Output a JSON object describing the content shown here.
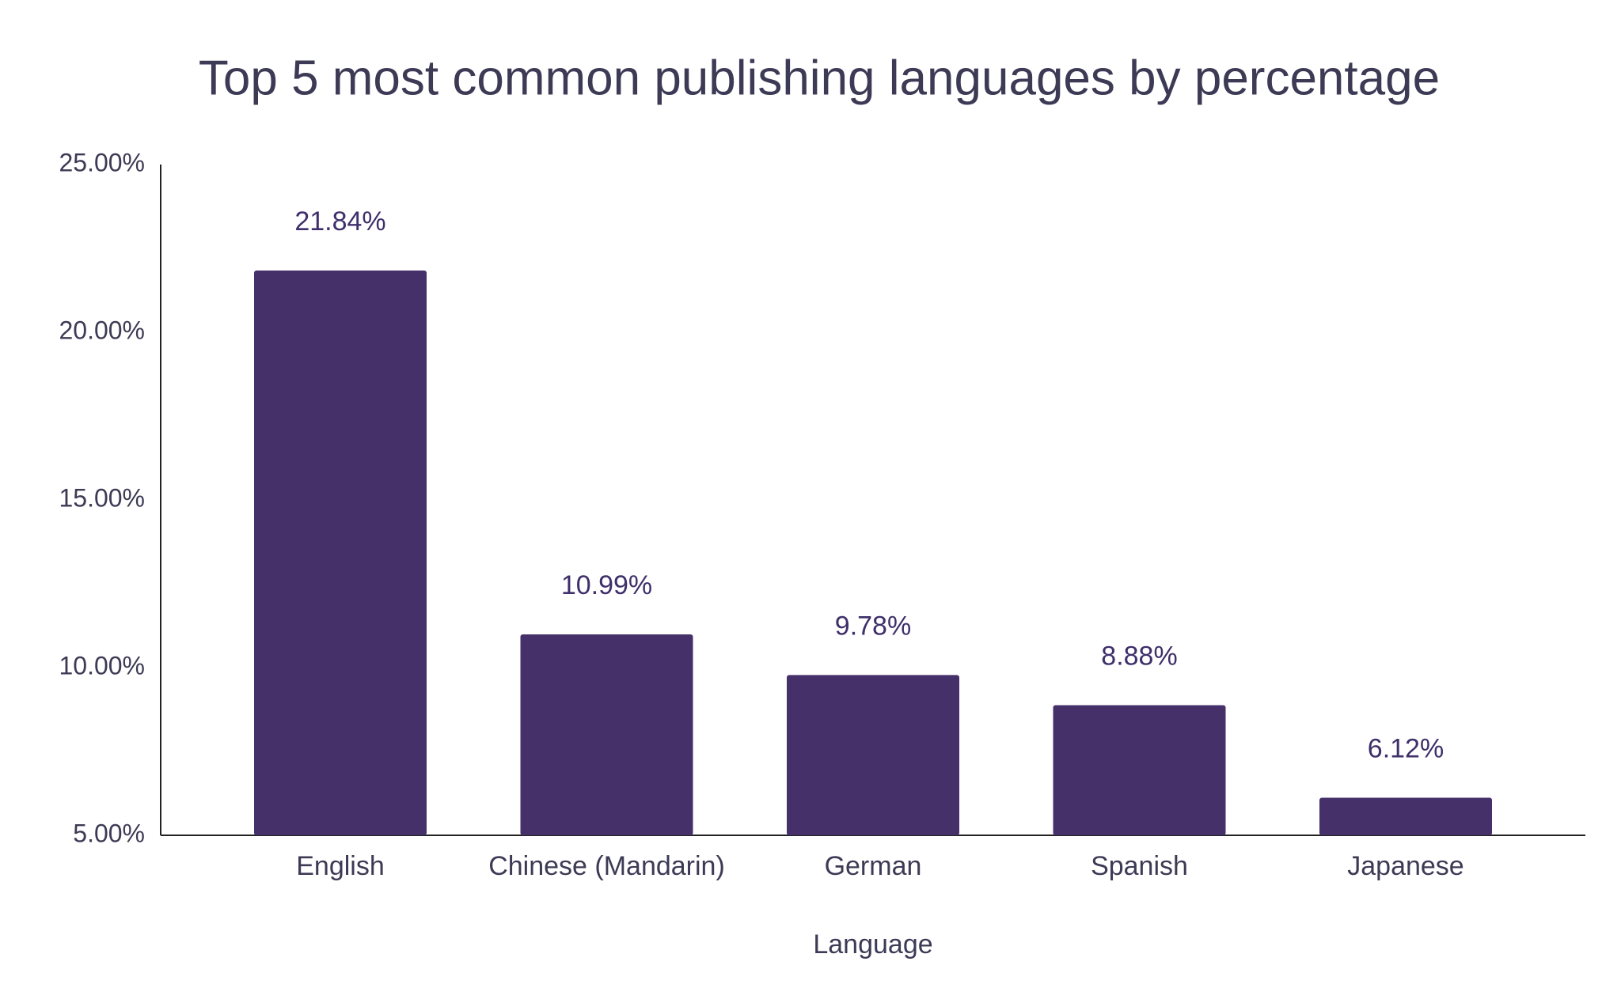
{
  "chart_data": {
    "type": "bar",
    "title": "Top 5 most common publishing languages by percentage",
    "x_label": "Language",
    "categories": [
      "English",
      "Chinese (Mandarin)",
      "German",
      "Spanish",
      "Japanese"
    ],
    "values": [
      21.84,
      10.99,
      9.78,
      8.88,
      6.12
    ],
    "value_labels": [
      "21.84%",
      "10.99%",
      "9.78%",
      "8.88%",
      "6.12%"
    ],
    "color": "#45306a",
    "ylim": [
      5,
      25
    ],
    "yticks": [
      {
        "value": 5,
        "label": "5.00%"
      },
      {
        "value": 10,
        "label": "10.00%"
      },
      {
        "value": 15,
        "label": "15.00%"
      },
      {
        "value": 20,
        "label": "20.00%"
      },
      {
        "value": 25,
        "label": "25.00%"
      }
    ],
    "grid": false
  }
}
